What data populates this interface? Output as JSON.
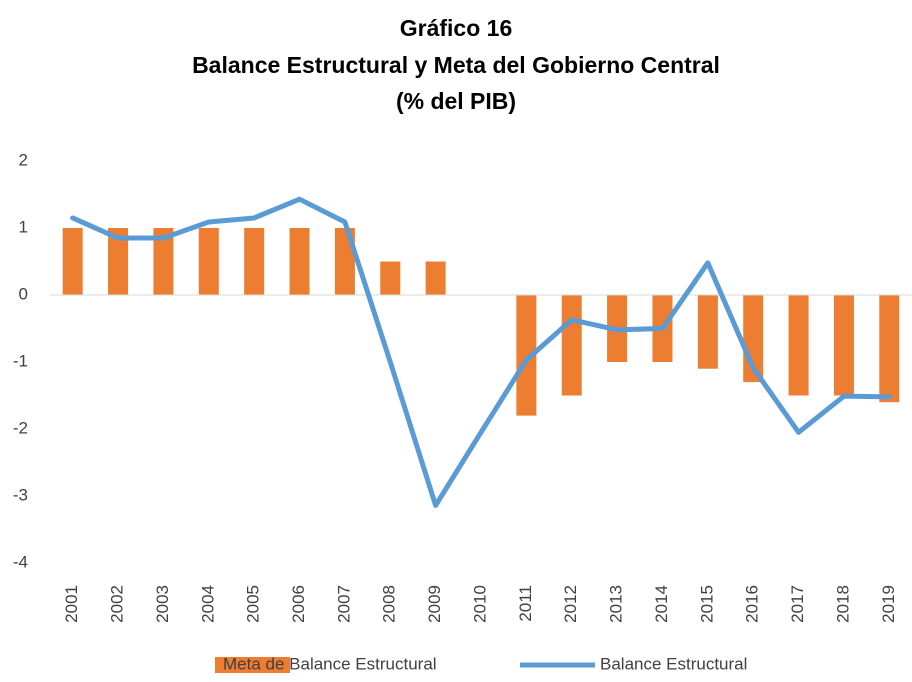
{
  "chart_data": {
    "type": "bar-line",
    "title": [
      "Gráfico 16",
      "Balance Estructural y Meta del Gobierno Central",
      "(% del PIB)"
    ],
    "categories": [
      "2001",
      "2002",
      "2003",
      "2004",
      "2005",
      "2006",
      "2007",
      "2008",
      "2009",
      "2010",
      "2011",
      "2012",
      "2013",
      "2014",
      "2015",
      "2016",
      "2017",
      "2018",
      "2019"
    ],
    "series": [
      {
        "name": "Meta de Balance Estructural",
        "type": "bar",
        "color": "#ed7d31",
        "values": [
          1,
          1,
          1,
          1,
          1,
          1,
          1,
          0.5,
          0.5,
          null,
          -1.8,
          -1.5,
          -1.0,
          -1.0,
          -1.1,
          -1.3,
          -1.5,
          -1.5,
          -1.6
        ]
      },
      {
        "name": "Balance Estructural",
        "type": "line",
        "color": "#5b9bd5",
        "values": [
          1.15,
          0.85,
          0.85,
          1.09,
          1.15,
          1.43,
          1.09,
          -1.0,
          -3.14,
          -2.05,
          -0.97,
          -0.37,
          -0.52,
          -0.5,
          0.48,
          -1.09,
          -2.05,
          -1.51,
          -1.52
        ]
      }
    ],
    "ylim": [
      -4,
      2
    ],
    "yticks": [
      -4,
      -3,
      -2,
      -1,
      0,
      1,
      2
    ],
    "grid": false,
    "legend": "bottom"
  }
}
